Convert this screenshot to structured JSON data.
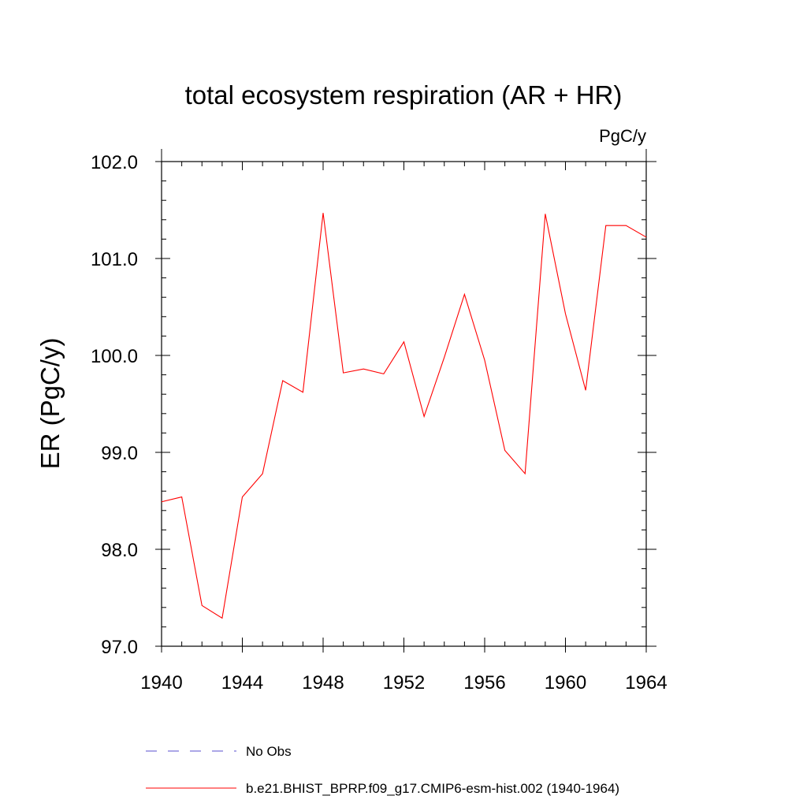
{
  "chart_data": {
    "type": "line",
    "title": "total ecosystem respiration (AR + HR)",
    "units_label": "PgC/y",
    "xlabel": "",
    "ylabel": "ER  (PgC/y)",
    "xlim": [
      1940,
      1964
    ],
    "ylim": [
      97.0,
      102.0
    ],
    "x_ticks": [
      1940,
      1944,
      1948,
      1952,
      1956,
      1960,
      1964
    ],
    "x_tick_labels": [
      "1940",
      "1944",
      "1948",
      "1952",
      "1956",
      "1960",
      "1964"
    ],
    "y_ticks": [
      97.0,
      98.0,
      99.0,
      100.0,
      101.0,
      102.0
    ],
    "y_tick_labels": [
      "97.0",
      "98.0",
      "99.0",
      "100.0",
      "101.0",
      "102.0"
    ],
    "x_minor_step": 1,
    "y_minor_step": 0.2,
    "series": [
      {
        "name": "b.e21.BHIST_BPRP.f09_g17.CMIP6-esm-hist.002 (1940-1964)",
        "color": "#ff0000",
        "style": "solid",
        "x": [
          1940,
          1941,
          1942,
          1943,
          1944,
          1945,
          1946,
          1947,
          1948,
          1949,
          1950,
          1951,
          1952,
          1953,
          1954,
          1955,
          1956,
          1957,
          1958,
          1959,
          1960,
          1961,
          1962,
          1963,
          1964
        ],
        "values": [
          98.49,
          98.54,
          97.42,
          97.29,
          98.54,
          98.78,
          99.74,
          99.62,
          101.47,
          99.82,
          99.86,
          99.81,
          100.14,
          99.37,
          99.98,
          100.63,
          99.95,
          99.02,
          98.78,
          101.46,
          100.43,
          99.64,
          101.34,
          101.34,
          101.22
        ]
      }
    ],
    "legend": [
      {
        "label": "No Obs",
        "color": "#5a4fcf",
        "style": "dashed"
      },
      {
        "label": "b.e21.BHIST_BPRP.f09_g17.CMIP6-esm-hist.002 (1940-1964)",
        "color": "#ff0000",
        "style": "solid"
      }
    ],
    "legend_position": "bottom"
  }
}
